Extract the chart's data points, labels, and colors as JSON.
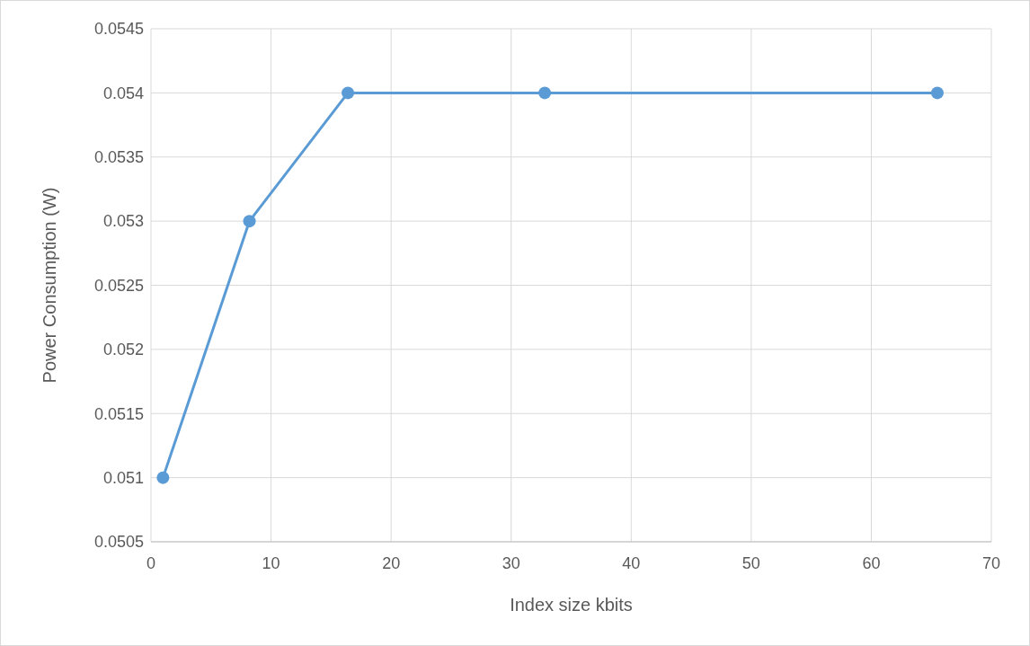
{
  "chart_data": {
    "type": "line",
    "xlabel": "Index size kbits",
    "ylabel": "Power Consumption (W)",
    "x": [
      1,
      8.2,
      16.4,
      32.8,
      65.5
    ],
    "series": [
      {
        "color": "#5b9bd5",
        "values": [
          0.051,
          0.053,
          0.054,
          0.054,
          0.054
        ]
      }
    ],
    "xlim": [
      0,
      70
    ],
    "xticks": [
      0,
      10,
      20,
      30,
      40,
      50,
      60,
      70
    ],
    "ylim": [
      0.0505,
      0.0545
    ],
    "yticks": [
      0.0505,
      0.051,
      0.0515,
      0.052,
      0.0525,
      0.053,
      0.0535,
      0.054,
      0.0545
    ],
    "grid": true,
    "marker": "circle",
    "line_style": "solid"
  }
}
